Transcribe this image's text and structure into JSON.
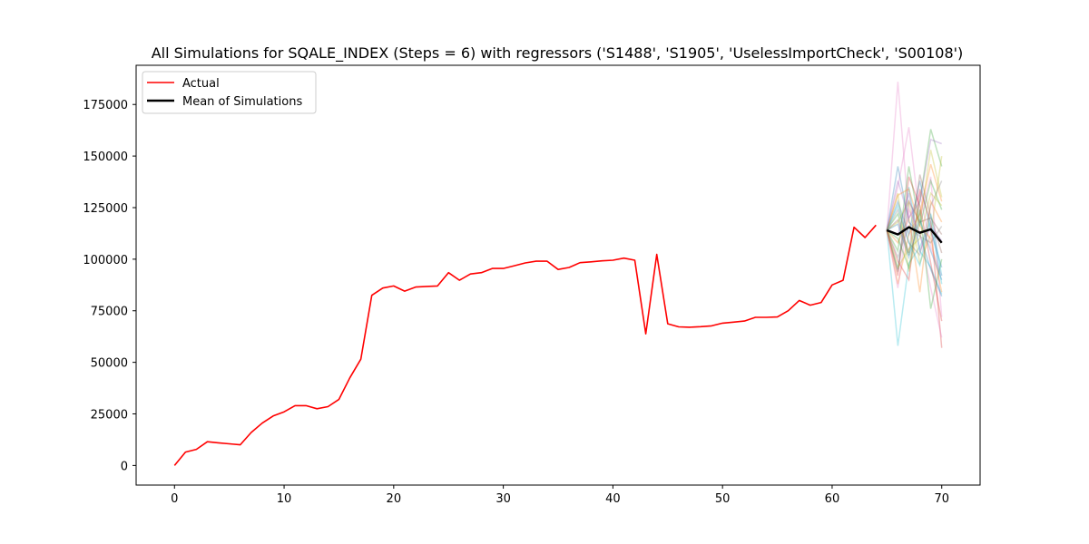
{
  "chart_data": {
    "type": "line",
    "title": "All Simulations for SQALE_INDEX (Steps = 6) with regressors ('S1488', 'S1905', 'UselessImportCheck', 'S00108')",
    "xlabel": "",
    "ylabel": "",
    "xlim": [
      -3.5,
      73.5
    ],
    "ylim": [
      -9500,
      194000
    ],
    "xticks": [
      0,
      10,
      20,
      30,
      40,
      50,
      60,
      70
    ],
    "yticks": [
      0,
      25000,
      50000,
      75000,
      100000,
      125000,
      150000,
      175000
    ],
    "ytick_labels": [
      "0",
      "25000",
      "50000",
      "75000",
      "100000",
      "125000",
      "150000",
      "175000"
    ],
    "grid": false,
    "legend_position": "top-left",
    "series": [
      {
        "name": "Actual",
        "color": "#ff0000",
        "x": [
          0,
          1,
          2,
          3,
          4,
          5,
          6,
          7,
          8,
          9,
          10,
          11,
          12,
          13,
          14,
          15,
          16,
          17,
          18,
          19,
          20,
          21,
          22,
          23,
          24,
          25,
          26,
          27,
          28,
          29,
          30,
          31,
          32,
          33,
          34,
          35,
          36,
          37,
          38,
          39,
          40,
          41,
          42,
          43,
          44,
          45,
          46,
          47,
          48,
          49,
          50,
          51,
          52,
          53,
          54,
          55,
          56,
          57,
          58,
          59,
          60,
          61,
          62,
          63,
          64
        ],
        "y": [
          0,
          6500,
          7800,
          11500,
          11000,
          10500,
          10000,
          16000,
          20500,
          24000,
          26000,
          29000,
          29000,
          27500,
          28500,
          32000,
          42500,
          51500,
          82500,
          86000,
          87000,
          84500,
          86500,
          86800,
          87000,
          93500,
          89800,
          92800,
          93500,
          95500,
          95500,
          96800,
          98200,
          99000,
          99000,
          95000,
          96000,
          98300,
          98700,
          99200,
          99500,
          100500,
          99500,
          63800,
          102300,
          68700,
          67200,
          67000,
          67300,
          67700,
          69000,
          69500,
          70000,
          71800,
          71800,
          72000,
          75000,
          80000,
          77700,
          79000,
          87500,
          89800,
          115500,
          110500,
          116500
        ]
      },
      {
        "name": "Mean of Simulations",
        "color": "#000000",
        "x": [
          65,
          66,
          67,
          68,
          69,
          70
        ],
        "y": [
          114000,
          112000,
          115500,
          112800,
          114500,
          108000
        ]
      }
    ],
    "simulations": {
      "x": [
        65,
        66,
        67,
        68,
        69,
        70
      ],
      "opacity": 0.3,
      "runs": [
        {
          "color": "#e377c2",
          "y": [
            114000,
            186000,
            120000,
            132000,
            106000,
            92000
          ]
        },
        {
          "color": "#e377c2",
          "y": [
            114000,
            135000,
            164000,
            120000,
            140000,
            72000
          ]
        },
        {
          "color": "#17becf",
          "y": [
            114000,
            58000,
            98000,
            106000,
            118000,
            88000
          ]
        },
        {
          "color": "#17becf",
          "y": [
            114000,
            95000,
            135000,
            104000,
            96000,
            83000
          ]
        },
        {
          "color": "#2ca02c",
          "y": [
            114000,
            122000,
            102000,
            128000,
            163000,
            145000
          ]
        },
        {
          "color": "#2ca02c",
          "y": [
            114000,
            104000,
            145000,
            116000,
            138000,
            124000
          ]
        },
        {
          "color": "#bcbd22",
          "y": [
            114000,
            132000,
            94000,
            118000,
            153000,
            130000
          ]
        },
        {
          "color": "#bcbd22",
          "y": [
            114000,
            118000,
            128000,
            98000,
            112000,
            150000
          ]
        },
        {
          "color": "#ff7f0e",
          "y": [
            114000,
            88000,
            112000,
            122000,
            146000,
            128000
          ]
        },
        {
          "color": "#ff7f0e",
          "y": [
            114000,
            108000,
            120000,
            84000,
            128000,
            118000
          ]
        },
        {
          "color": "#1f77b4",
          "y": [
            114000,
            145000,
            118000,
            112000,
            95000,
            82000
          ]
        },
        {
          "color": "#1f77b4",
          "y": [
            114000,
            128000,
            112000,
            138000,
            114000,
            96000
          ]
        },
        {
          "color": "#d62728",
          "y": [
            114000,
            99000,
            90000,
            134000,
            118000,
            57000
          ]
        },
        {
          "color": "#d62728",
          "y": [
            114000,
            92000,
            140000,
            126000,
            98000,
            70000
          ]
        },
        {
          "color": "#9467bd",
          "y": [
            114000,
            138000,
            120000,
            128000,
            158000,
            156000
          ]
        },
        {
          "color": "#9467bd",
          "y": [
            114000,
            112000,
            132000,
            104000,
            116000,
            109000
          ]
        },
        {
          "color": "#8c564b",
          "y": [
            114000,
            94000,
            128000,
            118000,
            120000,
            112000
          ]
        },
        {
          "color": "#8c564b",
          "y": [
            114000,
            119000,
            103000,
            141000,
            121000,
            103000
          ]
        },
        {
          "color": "#7f7f7f",
          "y": [
            114000,
            101000,
            116000,
            111000,
            108000,
            116000
          ]
        },
        {
          "color": "#7f7f7f",
          "y": [
            114000,
            124000,
            108000,
            102000,
            126000,
            138000
          ]
        },
        {
          "color": "#17becf",
          "y": [
            114000,
            126000,
            108000,
            97000,
            122000,
            92000
          ]
        },
        {
          "color": "#e377c2",
          "y": [
            114000,
            86000,
            124000,
            113000,
            86000,
            62000
          ]
        },
        {
          "color": "#2ca02c",
          "y": [
            114000,
            110000,
            96000,
            124000,
            76000,
            100000
          ]
        },
        {
          "color": "#ff7f0e",
          "y": [
            114000,
            131000,
            134000,
            116000,
            110000,
            84000
          ]
        },
        {
          "color": "#bcbd22",
          "y": [
            114000,
            96000,
            105000,
            110000,
            132000,
            126000
          ]
        },
        {
          "color": "#1f77b4",
          "y": [
            114000,
            117000,
            101000,
            119000,
            104000,
            90000
          ]
        }
      ]
    }
  }
}
